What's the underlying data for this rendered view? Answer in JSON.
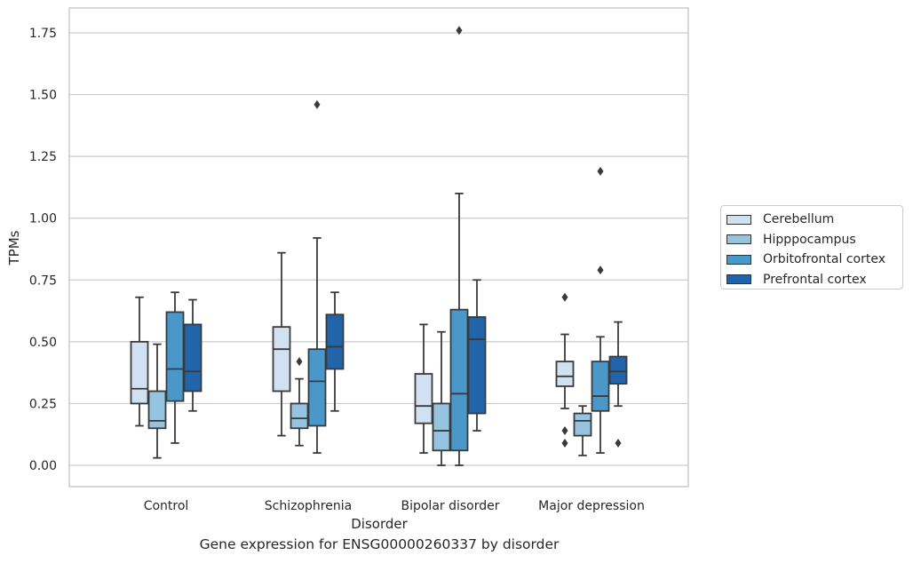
{
  "chart_data": {
    "type": "box",
    "title": "Gene expression for ENSG00000260337 by disorder",
    "xlabel": "Disorder",
    "ylabel": "TPMs",
    "ylim": [
      -0.085,
      1.85
    ],
    "yticks": [
      "0.00",
      "0.25",
      "0.50",
      "0.75",
      "1.00",
      "1.25",
      "1.50",
      "1.75"
    ],
    "ytick_values": [
      0,
      0.25,
      0.5,
      0.75,
      1.0,
      1.25,
      1.5,
      1.75
    ],
    "grid": true,
    "legend_position": "right",
    "categories": [
      "Control",
      "Schizophrenia",
      "Bipolar disorder",
      "Major depression"
    ],
    "series": [
      {
        "name": "Cerebellum",
        "color": "#d0e1f2",
        "boxes": [
          {
            "whislo": 0.16,
            "q1": 0.25,
            "med": 0.31,
            "q3": 0.5,
            "whishi": 0.68,
            "fliers": []
          },
          {
            "whislo": 0.12,
            "q1": 0.3,
            "med": 0.47,
            "q3": 0.56,
            "whishi": 0.86,
            "fliers": []
          },
          {
            "whislo": 0.05,
            "q1": 0.17,
            "med": 0.24,
            "q3": 0.37,
            "whishi": 0.57,
            "fliers": []
          },
          {
            "whislo": 0.23,
            "q1": 0.32,
            "med": 0.36,
            "q3": 0.42,
            "whishi": 0.53,
            "fliers": [
              0.68,
              0.14,
              0.09
            ]
          }
        ]
      },
      {
        "name": "Hipppocampus",
        "color": "#94c4df",
        "boxes": [
          {
            "whislo": 0.03,
            "q1": 0.15,
            "med": 0.18,
            "q3": 0.3,
            "whishi": 0.49,
            "fliers": []
          },
          {
            "whislo": 0.08,
            "q1": 0.15,
            "med": 0.19,
            "q3": 0.25,
            "whishi": 0.35,
            "fliers": [
              0.42
            ]
          },
          {
            "whislo": 0.0,
            "q1": 0.06,
            "med": 0.14,
            "q3": 0.25,
            "whishi": 0.54,
            "fliers": []
          },
          {
            "whislo": 0.04,
            "q1": 0.12,
            "med": 0.18,
            "q3": 0.21,
            "whishi": 0.24,
            "fliers": []
          }
        ]
      },
      {
        "name": "Orbitofrontal cortex",
        "color": "#4a98c9",
        "boxes": [
          {
            "whislo": 0.09,
            "q1": 0.26,
            "med": 0.39,
            "q3": 0.62,
            "whishi": 0.7,
            "fliers": []
          },
          {
            "whislo": 0.05,
            "q1": 0.16,
            "med": 0.34,
            "q3": 0.47,
            "whishi": 0.92,
            "fliers": [
              1.46
            ]
          },
          {
            "whislo": 0.0,
            "q1": 0.06,
            "med": 0.29,
            "q3": 0.63,
            "whishi": 1.1,
            "fliers": [
              1.76
            ]
          },
          {
            "whislo": 0.05,
            "q1": 0.22,
            "med": 0.28,
            "q3": 0.42,
            "whishi": 0.52,
            "fliers": [
              0.79,
              1.19
            ]
          }
        ]
      },
      {
        "name": "Prefrontal cortex",
        "color": "#2264aa",
        "boxes": [
          {
            "whislo": 0.22,
            "q1": 0.3,
            "med": 0.38,
            "q3": 0.57,
            "whishi": 0.67,
            "fliers": []
          },
          {
            "whislo": 0.22,
            "q1": 0.39,
            "med": 0.48,
            "q3": 0.61,
            "whishi": 0.7,
            "fliers": []
          },
          {
            "whislo": 0.14,
            "q1": 0.21,
            "med": 0.51,
            "q3": 0.6,
            "whishi": 0.75,
            "fliers": []
          },
          {
            "whislo": 0.24,
            "q1": 0.33,
            "med": 0.38,
            "q3": 0.44,
            "whishi": 0.58,
            "fliers": [
              0.09
            ]
          }
        ]
      }
    ]
  }
}
